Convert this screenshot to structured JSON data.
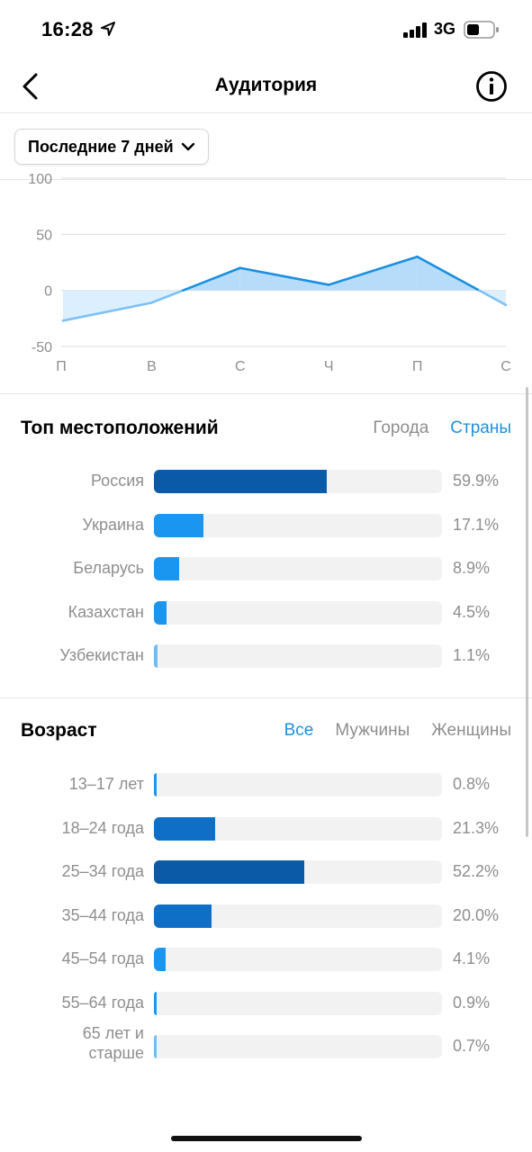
{
  "status_bar": {
    "time": "16:28",
    "network": "3G"
  },
  "nav": {
    "title": "Аудитория"
  },
  "filter": {
    "period": "Последние 7 дней"
  },
  "chart_data": {
    "type": "area",
    "x": [
      "П",
      "В",
      "С",
      "Ч",
      "П",
      "С"
    ],
    "values": [
      -27,
      -11,
      20,
      5,
      30,
      -13
    ],
    "yticks": [
      100,
      50,
      0,
      -50
    ],
    "ylim": [
      -50,
      100
    ],
    "colors": {
      "positive": "#1a8fe0",
      "negative": "#7cc1f5",
      "fill_positive": "#b7dcfa",
      "fill_negative": "#dcefff"
    }
  },
  "locations": {
    "title": "Топ местоположений",
    "tabs": [
      {
        "label": "Города",
        "active": false
      },
      {
        "label": "Страны",
        "active": true
      }
    ],
    "items": [
      {
        "label": "Россия",
        "value": "59.9%",
        "percent": 59.9,
        "color": "#0b5aa8"
      },
      {
        "label": "Украина",
        "value": "17.1%",
        "percent": 17.1,
        "color": "#1a96f0"
      },
      {
        "label": "Беларусь",
        "value": "8.9%",
        "percent": 8.9,
        "color": "#1a96f0"
      },
      {
        "label": "Казахстан",
        "value": "4.5%",
        "percent": 4.5,
        "color": "#1a96f0"
      },
      {
        "label": "Узбекистан",
        "value": "1.1%",
        "percent": 1.1,
        "color": "#6fbdf2"
      }
    ]
  },
  "age": {
    "title": "Возраст",
    "tabs": [
      {
        "label": "Все",
        "active": true
      },
      {
        "label": "Мужчины",
        "active": false
      },
      {
        "label": "Женщины",
        "active": false
      }
    ],
    "items": [
      {
        "label": "13–17 лет",
        "value": "0.8%",
        "percent": 0.8,
        "color": "#1a96f0"
      },
      {
        "label": "18–24 года",
        "value": "21.3%",
        "percent": 21.3,
        "color": "#0f6fc6"
      },
      {
        "label": "25–34 года",
        "value": "52.2%",
        "percent": 52.2,
        "color": "#0b5aa8"
      },
      {
        "label": "35–44 года",
        "value": "20.0%",
        "percent": 20.0,
        "color": "#0f6fc6"
      },
      {
        "label": "45–54 года",
        "value": "4.1%",
        "percent": 4.1,
        "color": "#1a96f0"
      },
      {
        "label": "55–64 года",
        "value": "0.9%",
        "percent": 0.9,
        "color": "#1a96f0"
      },
      {
        "label": "65 лет и старше",
        "value": "0.7%",
        "percent": 0.7,
        "color": "#6fbdf2"
      }
    ]
  }
}
